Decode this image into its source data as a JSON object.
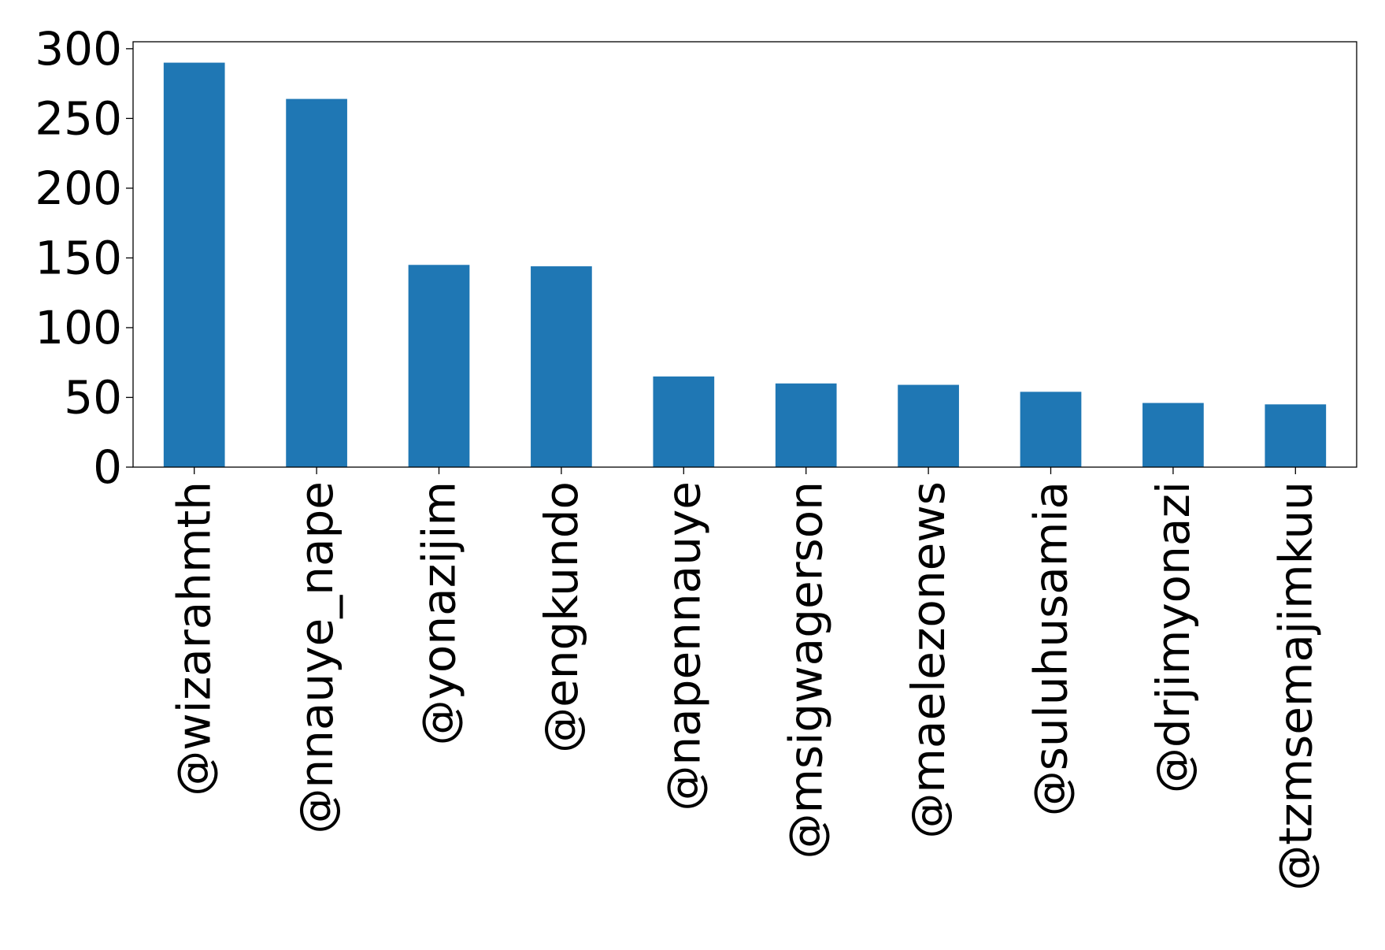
{
  "chart_data": {
    "type": "bar",
    "title": "",
    "xlabel": "",
    "ylabel": "",
    "categories": [
      "@wizarahmth",
      "@nnauye_nape",
      "@yonazijim",
      "@engkundo",
      "@napennauye",
      "@msigwagerson",
      "@maelezonews",
      "@suluhusamia",
      "@drjimyonazi",
      "@tzmsemajimkuu"
    ],
    "values": [
      290,
      264,
      145,
      144,
      65,
      60,
      59,
      54,
      46,
      45
    ],
    "ylim": [
      0,
      305
    ],
    "yticks": [
      0,
      50,
      100,
      150,
      200,
      250,
      300
    ],
    "ytick_labels": [
      "0",
      "50",
      "100",
      "150",
      "200",
      "250",
      "300"
    ],
    "bar_color": "#1f77b4",
    "grid": false,
    "legend": "none"
  }
}
